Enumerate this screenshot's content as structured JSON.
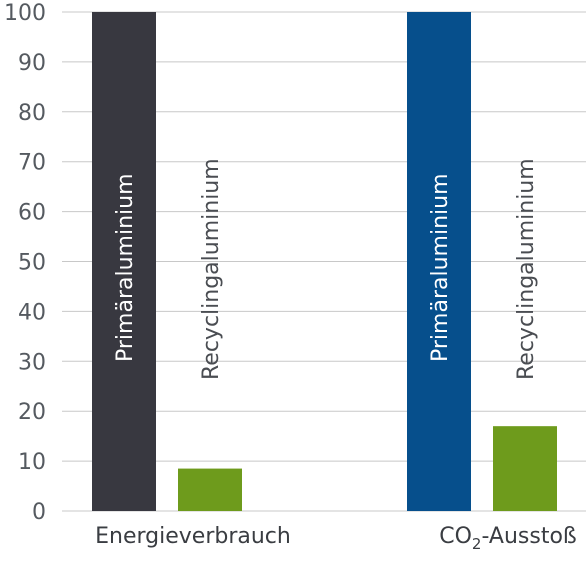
{
  "chart_data": {
    "type": "bar",
    "categories": [
      "Energieverbrauch",
      "CO₂-Ausstoß"
    ],
    "category_parts": [
      {
        "main": "Energieverbrauch",
        "sub": "",
        "rest": ""
      },
      {
        "main": "CO",
        "sub": "2",
        "rest": "-Ausstoß"
      }
    ],
    "series": [
      {
        "name": "Primäraluminium",
        "values": [
          100,
          100
        ],
        "colors": [
          "#383840",
          "#064f8c"
        ]
      },
      {
        "name": "Recyclingaluminium",
        "values": [
          8.5,
          17
        ],
        "colors": [
          "#6e9b1c",
          "#6e9b1c"
        ]
      }
    ],
    "yticks": [
      "0",
      "10",
      "20",
      "30",
      "40",
      "50",
      "60",
      "70",
      "80",
      "90",
      "100"
    ],
    "ylim": [
      0,
      100
    ],
    "grid": true,
    "title": "",
    "xlabel": "",
    "ylabel": ""
  }
}
